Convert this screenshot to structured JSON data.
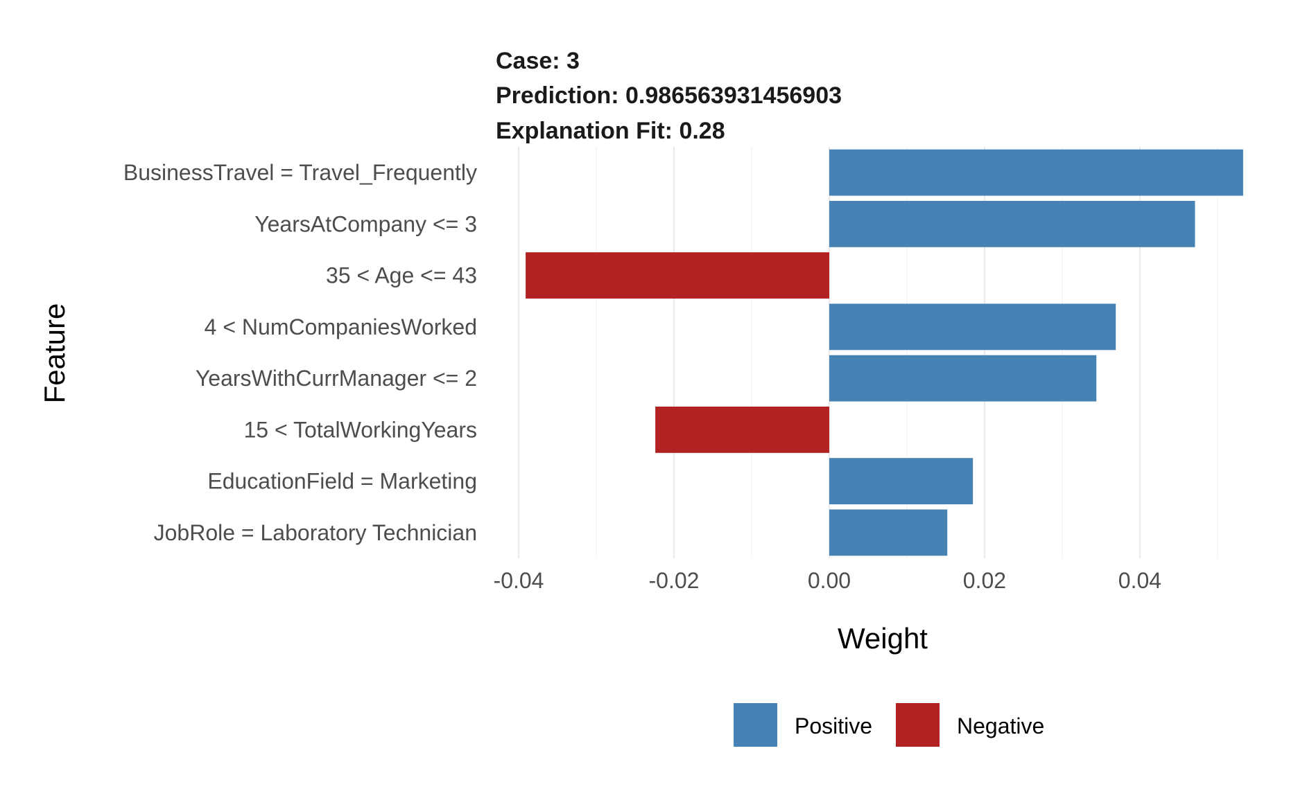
{
  "colors": {
    "positive": "#4682B4",
    "negative": "#B22222",
    "background": "#FFFFFF"
  },
  "chart_data": {
    "type": "bar",
    "orientation": "horizontal",
    "title_lines": [
      "Case: 3",
      "Prediction: 0.986563931456903",
      "Explanation Fit: 0.28"
    ],
    "xlabel": "Weight",
    "ylabel": "Feature",
    "xlim": [
      -0.04,
      0.0534
    ],
    "xticks": [
      -0.04,
      -0.02,
      0.0,
      0.02,
      0.04
    ],
    "xtick_labels": [
      "-0.04",
      "-0.02",
      "0.00",
      "0.02",
      "0.04"
    ],
    "categories": [
      "BusinessTravel = Travel_Frequently",
      "YearsAtCompany <= 3",
      "35 < Age <= 43",
      "4 < NumCompaniesWorked",
      "YearsWithCurrManager <= 2",
      "15 < TotalWorkingYears",
      "EducationField = Marketing",
      "JobRole = Laboratory Technician"
    ],
    "values": [
      0.0533,
      0.0471,
      -0.0391,
      0.0369,
      0.0344,
      -0.0224,
      0.0185,
      0.0152
    ],
    "legend": {
      "position": "bottom",
      "entries": [
        "Positive",
        "Negative"
      ]
    },
    "grid": true
  }
}
